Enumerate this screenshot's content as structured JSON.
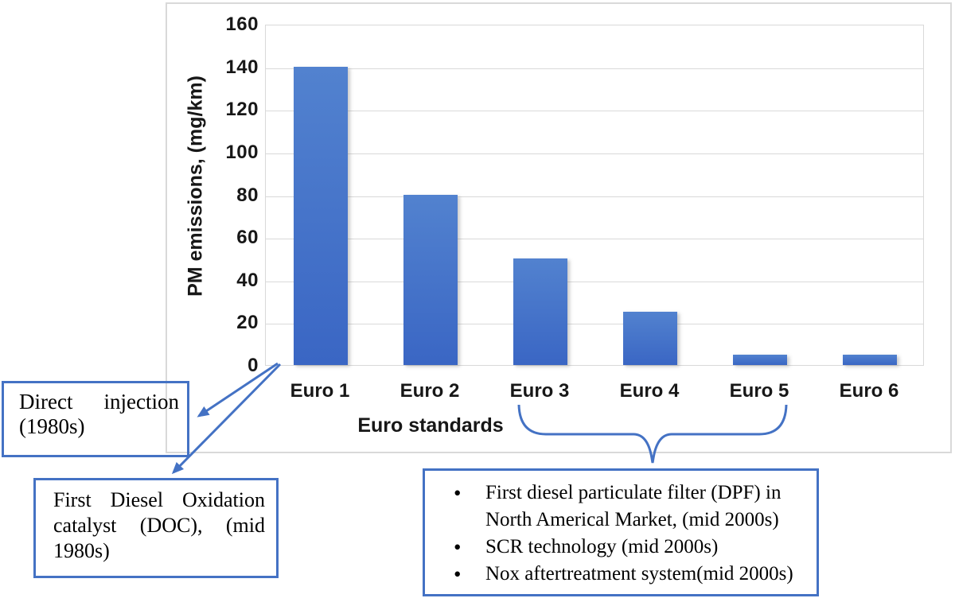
{
  "accent_color": "#4472C4",
  "gridline_color": "#D9D9D9",
  "chart_data": {
    "type": "bar",
    "categories": [
      "Euro 1",
      "Euro 2",
      "Euro 3",
      "Euro 4",
      "Euro 5",
      "Euro 6"
    ],
    "values": [
      140,
      80,
      50,
      25,
      5,
      5
    ],
    "title": "",
    "xlabel": "Euro standards",
    "ylabel": "PM emissions, (mg/km)",
    "ylim": [
      0,
      160
    ],
    "ytick_step": 20,
    "grid": true,
    "legend_position": "none",
    "bar_gradient": [
      "#5282CF",
      "#3A66C4"
    ]
  },
  "annotations": {
    "direct_injection": {
      "lines": [
        "Direct injection",
        "(1980s)"
      ]
    },
    "doc_catalyst": {
      "lines": [
        "First Diesel Oxidation",
        "catalyst (DOC), (mid",
        "1980s)"
      ]
    },
    "aftertreatment": {
      "bullet_char": "•",
      "items": [
        "First diesel particulate filter (DPF) in North Americal Market, (mid 2000s)",
        "SCR technology (mid 2000s)",
        "Nox aftertreatment system(mid 2000s)"
      ]
    }
  }
}
